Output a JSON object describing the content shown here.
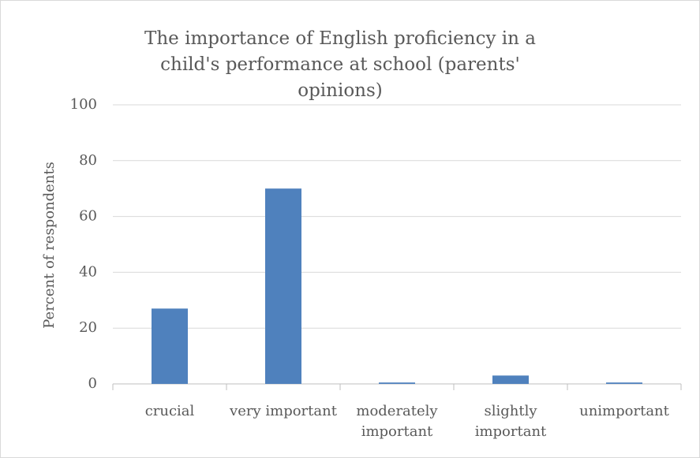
{
  "chart_data": {
    "type": "bar",
    "title": "The importance of English proficiency in a child's performance at school (parents' opinions)",
    "y_label": "Percent of respondents",
    "categories": [
      "crucial",
      "very important",
      "moderately important",
      "slightly important",
      "unimportant"
    ],
    "values": [
      27,
      70,
      0.5,
      3,
      0.5
    ],
    "color": "#4f81bd",
    "ylim": [
      0,
      100
    ],
    "yticks": [
      0,
      20,
      40,
      60,
      80,
      100
    ],
    "grid": true
  }
}
